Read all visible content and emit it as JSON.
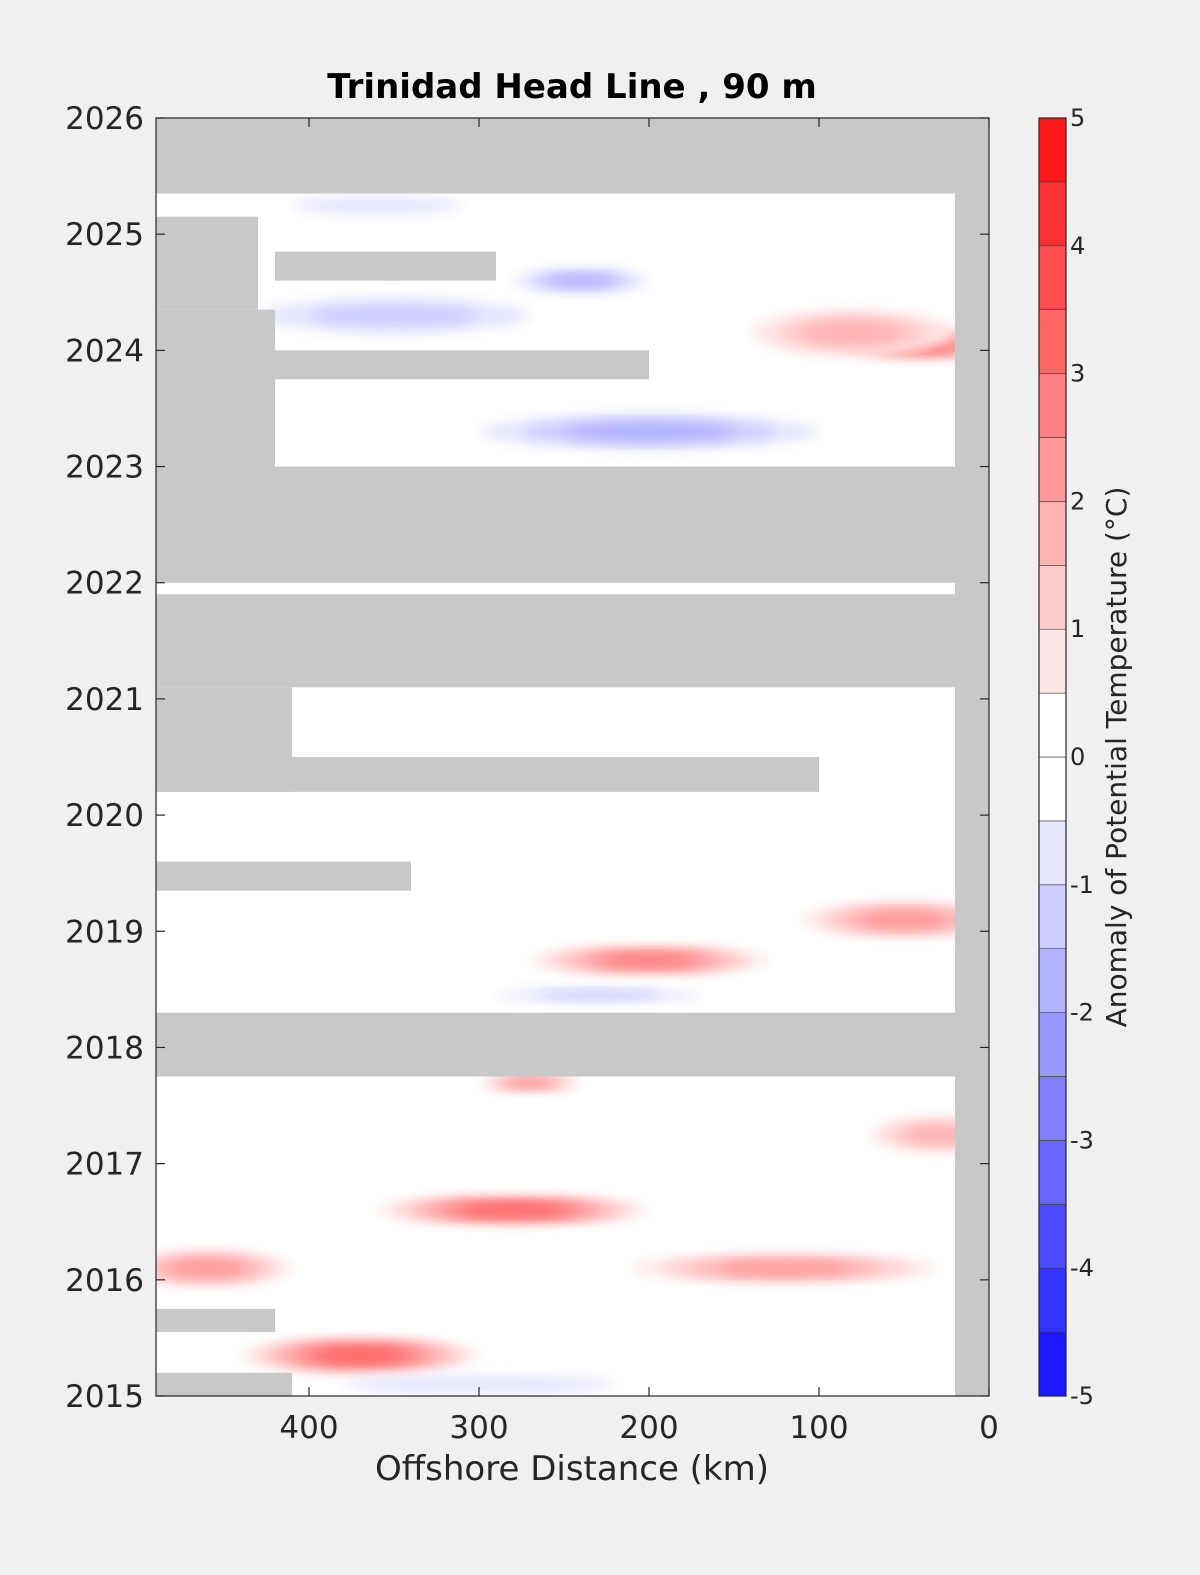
{
  "chart_data": {
    "type": "heatmap",
    "title": "Trinidad Head Line , 90 m",
    "xlabel": "Offshore Distance (km)",
    "ylabel": "",
    "xlim": [
      490,
      0
    ],
    "ylim": [
      2015,
      2026
    ],
    "x_ticks": [
      400,
      300,
      200,
      100,
      0
    ],
    "y_ticks": [
      2015,
      2016,
      2017,
      2018,
      2019,
      2020,
      2021,
      2022,
      2023,
      2024,
      2025,
      2026
    ],
    "no_data_color": "#c8c8c8",
    "colorbar": {
      "label": "Anomaly of Potential Temperature (°C)",
      "range": [
        -5,
        5
      ],
      "step": 0.5,
      "ticks": [
        -5,
        -4,
        -3,
        -2,
        -1,
        0,
        1,
        2,
        3,
        4,
        5
      ],
      "low_color": "#0000ff",
      "high_color": "#ff0000",
      "mid_color": "#ffffff"
    },
    "no_data_bands": [
      {
        "y": [
          2025.35,
          2026.0
        ],
        "x": [
          0,
          490
        ]
      },
      {
        "y": [
          2024.35,
          2025.15
        ],
        "x": [
          430,
          490
        ]
      },
      {
        "y": [
          2023.0,
          2024.35
        ],
        "x": [
          420,
          490
        ]
      },
      {
        "y": [
          2024.6,
          2024.85
        ],
        "x": [
          290,
          420
        ]
      },
      {
        "y": [
          2023.75,
          2024.0
        ],
        "x": [
          200,
          420
        ]
      },
      {
        "y": [
          2022.0,
          2023.0
        ],
        "x": [
          0,
          490
        ]
      },
      {
        "y": [
          2021.1,
          2021.9
        ],
        "x": [
          0,
          490
        ]
      },
      {
        "y": [
          2020.2,
          2021.1
        ],
        "x": [
          410,
          490
        ]
      },
      {
        "y": [
          2020.2,
          2020.5
        ],
        "x": [
          100,
          490
        ]
      },
      {
        "y": [
          2017.75,
          2018.3
        ],
        "x": [
          20,
          490
        ]
      },
      {
        "y": [
          2019.35,
          2019.6
        ],
        "x": [
          340,
          490
        ]
      },
      {
        "y": [
          2015.55,
          2015.75
        ],
        "x": [
          420,
          490
        ]
      },
      {
        "y": [
          2015.0,
          2015.2
        ],
        "x": [
          410,
          490
        ]
      },
      {
        "y": [
          2015.0,
          2025.35
        ],
        "x": [
          0,
          20
        ]
      }
    ],
    "anomaly_features": [
      {
        "x": 40,
        "y": 2024.05,
        "value": 3.0,
        "rx": 45,
        "ry": 0.12
      },
      {
        "x": 80,
        "y": 2024.15,
        "value": 1.5,
        "rx": 60,
        "ry": 0.2
      },
      {
        "x": 240,
        "y": 2024.6,
        "value": -1.5,
        "rx": 40,
        "ry": 0.1
      },
      {
        "x": 200,
        "y": 2023.3,
        "value": -1.5,
        "rx": 100,
        "ry": 0.15
      },
      {
        "x": 350,
        "y": 2024.3,
        "value": -0.8,
        "rx": 80,
        "ry": 0.15
      },
      {
        "x": 360,
        "y": 2025.25,
        "value": -0.6,
        "rx": 50,
        "ry": 0.08
      },
      {
        "x": 200,
        "y": 2018.75,
        "value": 2.5,
        "rx": 70,
        "ry": 0.12
      },
      {
        "x": 50,
        "y": 2019.1,
        "value": 1.8,
        "rx": 60,
        "ry": 0.15
      },
      {
        "x": 270,
        "y": 2017.7,
        "value": 2.0,
        "rx": 30,
        "ry": 0.08
      },
      {
        "x": 280,
        "y": 2016.6,
        "value": 2.8,
        "rx": 80,
        "ry": 0.12
      },
      {
        "x": 120,
        "y": 2016.1,
        "value": 2.2,
        "rx": 90,
        "ry": 0.12
      },
      {
        "x": 370,
        "y": 2015.35,
        "value": 3.0,
        "rx": 70,
        "ry": 0.15
      },
      {
        "x": 460,
        "y": 2016.1,
        "value": 2.0,
        "rx": 50,
        "ry": 0.15
      },
      {
        "x": 30,
        "y": 2017.25,
        "value": 1.3,
        "rx": 40,
        "ry": 0.15
      },
      {
        "x": 230,
        "y": 2018.45,
        "value": -1.0,
        "rx": 60,
        "ry": 0.06
      },
      {
        "x": 300,
        "y": 2015.1,
        "value": -0.6,
        "rx": 80,
        "ry": 0.08
      }
    ]
  }
}
